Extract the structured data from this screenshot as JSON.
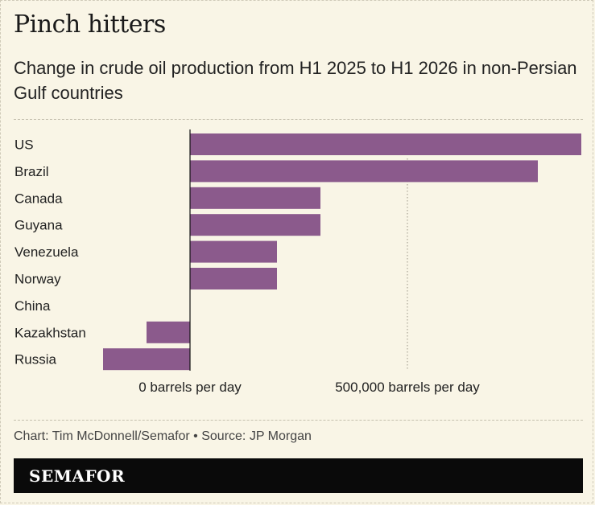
{
  "header": {
    "title": "Pinch hitters",
    "subtitle": "Change in crude oil production from H1 2025 to H1 2026 in non-Persian Gulf countries"
  },
  "footer": {
    "credit": "Chart: Tim McDonnell/Semafor • Source: JP Morgan",
    "brand": "SEMAFOR"
  },
  "colors": {
    "bar": "#8b5a8c",
    "background": "#f9f5e6",
    "brand_bar": "#0a0a0a"
  },
  "chart_data": {
    "type": "bar",
    "orientation": "horizontal",
    "categories": [
      "US",
      "Brazil",
      "Canada",
      "Guyana",
      "Venezuela",
      "Norway",
      "China",
      "Kazakhstan",
      "Russia"
    ],
    "values": [
      900000,
      800000,
      300000,
      300000,
      200000,
      200000,
      0,
      -100000,
      -200000
    ],
    "xlim": [
      -200000,
      900000
    ],
    "x_ticks": [
      {
        "value": 0,
        "label": "0 barrels per day"
      },
      {
        "value": 500000,
        "label": "500,000 barrels per day"
      }
    ],
    "grid": "vertical dotted at 500,000",
    "legend": "none"
  }
}
